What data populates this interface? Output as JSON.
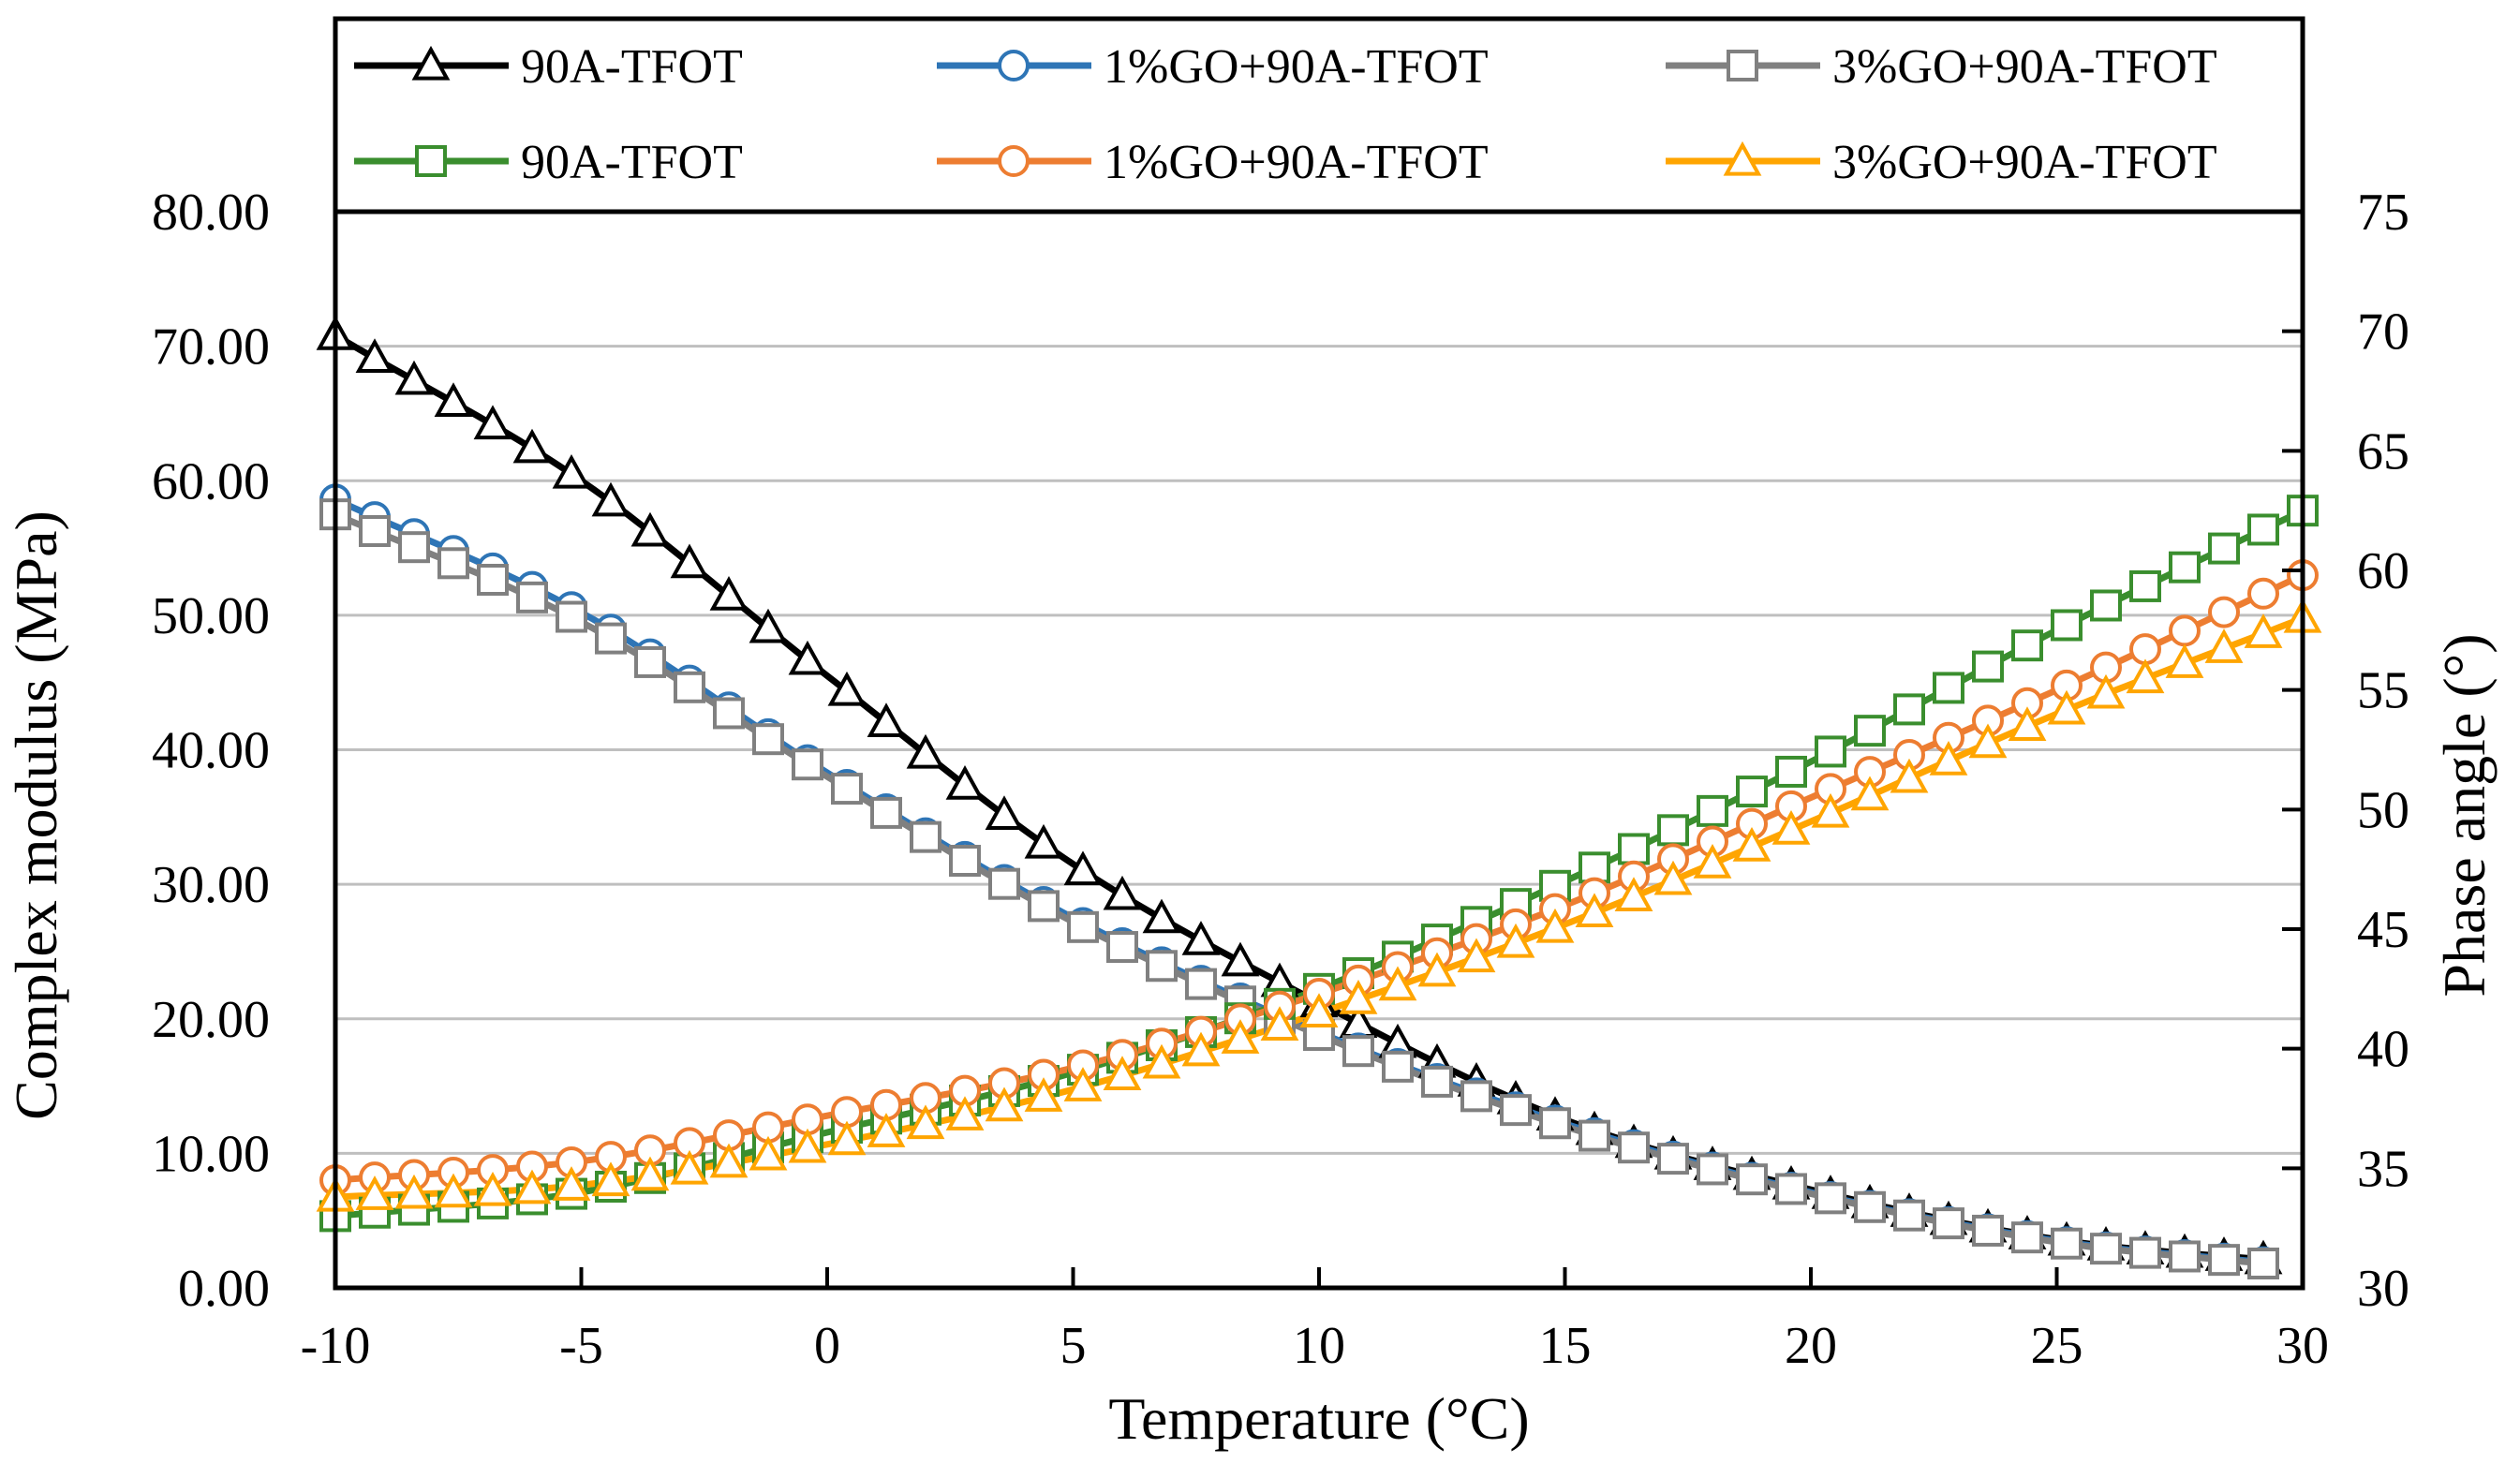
{
  "chart_data": {
    "type": "line",
    "x_label": "Temperature (°C)",
    "y_label_left": "Complex modulus (MPa)",
    "y_label_right": "Phase angle (°)",
    "x_range": [
      -10,
      30
    ],
    "y_left_range": [
      0,
      80
    ],
    "y_right_range": [
      30,
      75
    ],
    "x_ticks": [
      "-10",
      "-5",
      "0",
      "5",
      "10",
      "15",
      "20",
      "25",
      "30"
    ],
    "y_left_ticks": [
      "0.00",
      "10.00",
      "20.00",
      "30.00",
      "40.00",
      "50.00",
      "60.00",
      "70.00",
      "80.00"
    ],
    "y_right_ticks": [
      "30",
      "35",
      "40",
      "45",
      "50",
      "55",
      "60",
      "65",
      "70",
      "75"
    ],
    "grid": "horizontal",
    "legend_position": "top",
    "series": [
      {
        "name": "90A-TFOT",
        "axis": "left",
        "color": "#000000",
        "marker": "triangle",
        "x": [
          -10,
          -5,
          0,
          5,
          10,
          15,
          20,
          25,
          29.5
        ],
        "y": [
          70.8,
          60.0,
          45.5,
          31.5,
          21.2,
          12.5,
          7.3,
          3.6,
          2.0
        ]
      },
      {
        "name": "1%GO+90A-TFOT",
        "axis": "left",
        "color": "#2E75B6",
        "marker": "circle",
        "x": [
          -10,
          -5,
          0,
          5,
          10,
          15,
          20,
          25,
          29.5
        ],
        "y": [
          58.6,
          50.2,
          38.3,
          27.5,
          19.0,
          12.2,
          7.1,
          3.5,
          1.8
        ]
      },
      {
        "name": "3%GO+90A-TFOT",
        "axis": "left",
        "color": "#808080",
        "marker": "square",
        "x": [
          -10,
          -5,
          0,
          5,
          10,
          15,
          20,
          25,
          29.5
        ],
        "y": [
          57.5,
          49.5,
          38.0,
          27.2,
          18.8,
          12.0,
          7.0,
          3.4,
          1.7
        ]
      },
      {
        "name": "90A-TFOT",
        "axis": "right",
        "color": "#3A8E2E",
        "marker": "square",
        "x": [
          -10,
          -5,
          0,
          5,
          10,
          15,
          20,
          25,
          30
        ],
        "y": [
          33.0,
          34.0,
          36.5,
          39.0,
          42.5,
          47.0,
          52.0,
          57.5,
          62.5
        ]
      },
      {
        "name": "1%GO+90A-TFOT",
        "axis": "right",
        "color": "#ED7D31",
        "marker": "circle",
        "x": [
          -10,
          -5,
          0,
          5,
          10,
          15,
          20,
          25,
          30
        ],
        "y": [
          34.5,
          35.3,
          37.2,
          39.2,
          42.3,
          46.0,
          50.5,
          55.0,
          59.8
        ]
      },
      {
        "name": "3%GO+90A-TFOT",
        "axis": "right",
        "color": "#FFA500",
        "marker": "triangle",
        "x": [
          -10,
          -5,
          0,
          5,
          10,
          15,
          20,
          25,
          30
        ],
        "y": [
          33.8,
          34.3,
          36.0,
          38.3,
          41.5,
          45.2,
          49.5,
          54.0,
          58.0
        ]
      }
    ]
  }
}
